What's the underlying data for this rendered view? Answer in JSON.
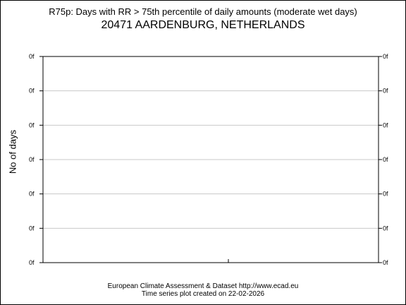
{
  "title": "R75p: Days with RR > 75th percentile of daily amounts (moderate wet days)",
  "subtitle": "20471 AARDENBURG, NETHERLANDS",
  "footer": {
    "line1": "European Climate Assessment & Dataset  http://www.ecad.eu",
    "line2": "Time series plot created on 22-02-2026"
  },
  "chart_data": {
    "type": "line",
    "title": "R75p: Days with RR > 75th percentile of daily amounts (moderate wet days)",
    "subtitle": "20471 AARDENBURG, NETHERLANDS",
    "ylabel": "No of days",
    "xlabel": "",
    "y_tick_labels": [
      "0f",
      "0f",
      "0f",
      "0f",
      "0f",
      "0f",
      "0f"
    ],
    "y_ticks_on_right": true,
    "grid": "horizontal",
    "series": []
  }
}
